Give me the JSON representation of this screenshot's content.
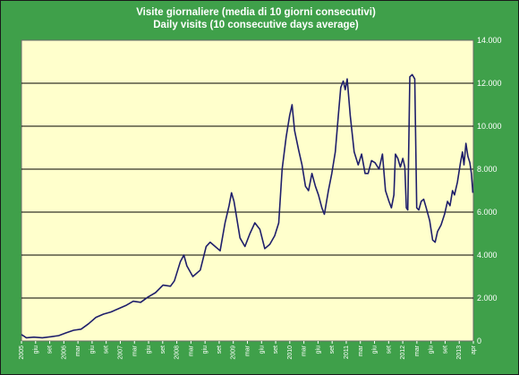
{
  "chart_data": {
    "type": "line",
    "title": "Visite giornaliere (media di 10 giorni consecutivi)",
    "subtitle": "Daily visits (10 consecutive days average)",
    "y_axis_position": "right",
    "ylim": [
      0,
      14000
    ],
    "yticks": [
      "0",
      "2.000",
      "4.000",
      "6.000",
      "8.000",
      "10.000",
      "12.000",
      "14.000"
    ],
    "grid": "horizontal",
    "xlim": [
      "2005-01",
      "2012-04"
    ],
    "xtick_labels": [
      "2005",
      "giu",
      "set",
      "2006",
      "mar",
      "giu",
      "set",
      "2007",
      "mar",
      "giu",
      "set",
      "2008",
      "mar",
      "giu",
      "set",
      "2009",
      "mar",
      "giu",
      "set",
      "2010",
      "mar",
      "giu",
      "set",
      "2011",
      "mar",
      "giu",
      "set",
      "2012",
      "mar",
      "giu",
      "set",
      "2013",
      "apr"
    ],
    "colors": {
      "background": "#3fa04a",
      "plot_area": "#ffffcc",
      "line": "#1f1f6b",
      "grid": "#000000",
      "text": "#ffffff"
    },
    "series": [
      {
        "values": [
          [
            2005.0,
            300
          ],
          [
            2005.1,
            150
          ],
          [
            2005.25,
            180
          ],
          [
            2005.42,
            150
          ],
          [
            2005.6,
            200
          ],
          [
            2005.75,
            250
          ],
          [
            2005.9,
            380
          ],
          [
            2006.05,
            500
          ],
          [
            2006.2,
            550
          ],
          [
            2006.35,
            800
          ],
          [
            2006.5,
            1100
          ],
          [
            2006.65,
            1250
          ],
          [
            2006.8,
            1350
          ],
          [
            2006.95,
            1500
          ],
          [
            2007.1,
            1650
          ],
          [
            2007.25,
            1850
          ],
          [
            2007.4,
            1800
          ],
          [
            2007.55,
            2050
          ],
          [
            2007.7,
            2250
          ],
          [
            2007.85,
            2600
          ],
          [
            2008.0,
            2550
          ],
          [
            2008.08,
            2800
          ],
          [
            2008.2,
            3700
          ],
          [
            2008.27,
            4000
          ],
          [
            2008.33,
            3500
          ],
          [
            2008.45,
            3000
          ],
          [
            2008.6,
            3300
          ],
          [
            2008.72,
            4400
          ],
          [
            2008.8,
            4600
          ],
          [
            2008.9,
            4400
          ],
          [
            2009.0,
            4200
          ],
          [
            2009.1,
            5500
          ],
          [
            2009.18,
            6300
          ],
          [
            2009.23,
            6900
          ],
          [
            2009.28,
            6500
          ],
          [
            2009.4,
            4800
          ],
          [
            2009.5,
            4400
          ],
          [
            2009.6,
            5000
          ],
          [
            2009.7,
            5500
          ],
          [
            2009.8,
            5200
          ],
          [
            2009.9,
            4300
          ],
          [
            2010.0,
            4500
          ],
          [
            2010.1,
            4900
          ],
          [
            2010.18,
            5500
          ],
          [
            2010.25,
            8000
          ],
          [
            2010.33,
            9500
          ],
          [
            2010.4,
            10500
          ],
          [
            2010.45,
            11000
          ],
          [
            2010.5,
            9800
          ],
          [
            2010.58,
            8900
          ],
          [
            2010.65,
            8200
          ],
          [
            2010.72,
            7200
          ],
          [
            2010.78,
            7000
          ],
          [
            2010.85,
            7800
          ],
          [
            2010.92,
            7200
          ],
          [
            2010.98,
            6800
          ],
          [
            2011.05,
            6200
          ],
          [
            2011.1,
            5900
          ],
          [
            2011.18,
            7000
          ],
          [
            2011.25,
            7800
          ],
          [
            2011.32,
            8800
          ],
          [
            2011.38,
            10500
          ],
          [
            2011.43,
            11800
          ],
          [
            2011.48,
            12100
          ],
          [
            2011.52,
            11700
          ],
          [
            2011.56,
            12200
          ],
          [
            2011.62,
            10500
          ],
          [
            2011.7,
            8800
          ],
          [
            2011.78,
            8200
          ],
          [
            2011.85,
            8700
          ],
          [
            2011.92,
            7800
          ],
          [
            2011.98,
            7800
          ],
          [
            2012.05,
            8400
          ],
          [
            2012.12,
            8300
          ],
          [
            2012.2,
            8000
          ],
          [
            2012.27,
            8700
          ],
          [
            2012.33,
            7000
          ],
          [
            2012.4,
            6500
          ],
          [
            2012.45,
            6200
          ],
          [
            2012.5,
            6800
          ],
          [
            2012.53,
            8700
          ],
          [
            2012.58,
            8500
          ],
          [
            2012.63,
            8100
          ],
          [
            2012.68,
            8500
          ],
          [
            2012.72,
            8100
          ],
          [
            2012.75,
            6200
          ],
          [
            2012.78,
            6100
          ],
          [
            2012.82,
            12300
          ],
          [
            2012.87,
            12400
          ],
          [
            2012.92,
            12200
          ],
          [
            2012.96,
            6200
          ],
          [
            2013.0,
            6100
          ],
          [
            2013.05,
            6500
          ],
          [
            2013.1,
            6600
          ],
          [
            2013.15,
            6200
          ],
          [
            2013.22,
            5600
          ],
          [
            2013.28,
            4700
          ],
          [
            2013.33,
            4600
          ],
          [
            2013.38,
            5100
          ],
          [
            2013.45,
            5400
          ],
          [
            2013.52,
            5900
          ],
          [
            2013.58,
            6500
          ],
          [
            2013.63,
            6300
          ],
          [
            2013.68,
            7000
          ],
          [
            2013.72,
            6800
          ],
          [
            2013.78,
            7400
          ],
          [
            2013.84,
            8300
          ],
          [
            2013.88,
            8800
          ],
          [
            2013.91,
            8200
          ],
          [
            2013.95,
            9200
          ],
          [
            2013.99,
            8600
          ],
          [
            2014.03,
            8300
          ],
          [
            2014.06,
            7800
          ],
          [
            2014.09,
            6900
          ]
        ]
      }
    ]
  }
}
